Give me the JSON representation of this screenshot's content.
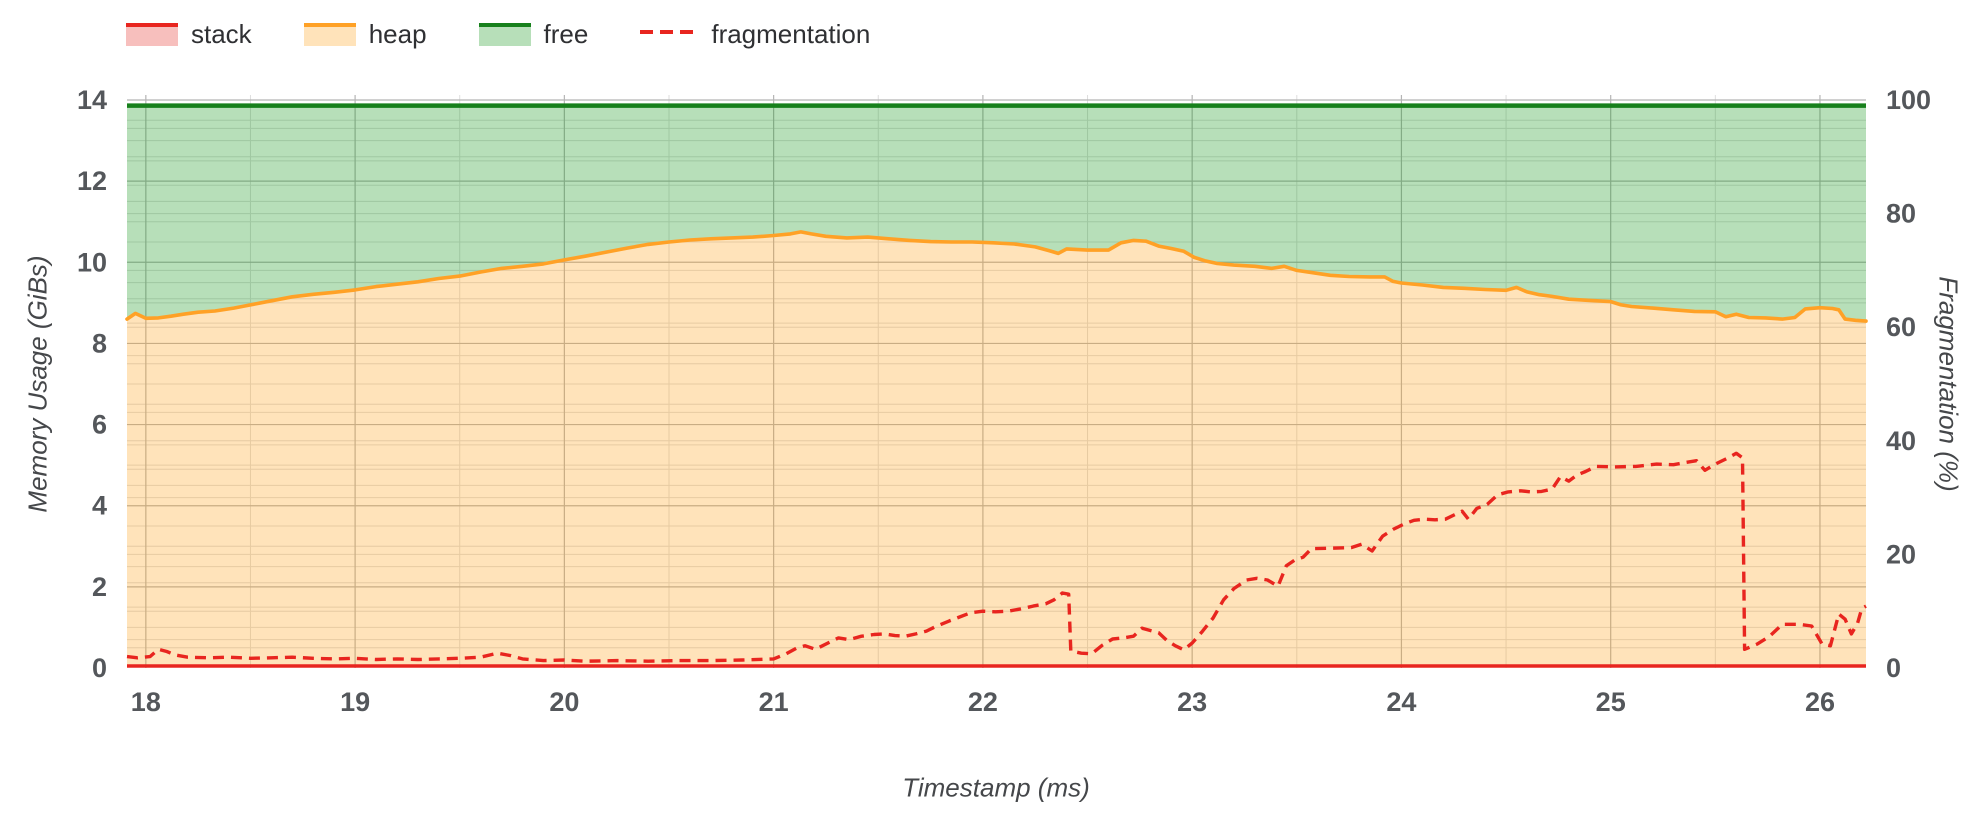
{
  "legend": {
    "items": [
      {
        "label": "stack",
        "type": "area"
      },
      {
        "label": "heap",
        "type": "area"
      },
      {
        "label": "free",
        "type": "area"
      },
      {
        "label": "fragmentation",
        "type": "dashed-line"
      }
    ]
  },
  "chart_data": {
    "type": "area",
    "title": "",
    "xlabel": "Timestamp (ms)",
    "ylabel_left": "Memory Usage (GiBs)",
    "ylabel_right": "Fragmentation (%)",
    "x_range": [
      17.91,
      26.22
    ],
    "y_left_range": [
      0,
      14.25
    ],
    "y_right_range": [
      0,
      101
    ],
    "x_ticks": [
      18,
      19,
      20,
      21,
      22,
      23,
      24,
      25,
      26
    ],
    "y_left_ticks": [
      0,
      2,
      4,
      6,
      8,
      10,
      12,
      14
    ],
    "y_right_ticks": [
      0,
      20,
      40,
      60,
      80,
      100
    ],
    "grid": "on",
    "legend_position": "top-left",
    "total_memory_gib": 13.86,
    "stack_gib": 0.05,
    "series": [
      {
        "name": "stack",
        "axis": "left",
        "style": "line+fill",
        "color": "#e8251f",
        "fill": "rgba(229,43,37,0.30)",
        "points": [
          [
            17.91,
            0.05
          ],
          [
            26.22,
            0.05
          ]
        ]
      },
      {
        "name": "heap",
        "axis": "left",
        "style": "line+fill",
        "color": "#ffa126",
        "fill": "rgba(255,153,0,0.27)",
        "points": [
          [
            17.91,
            8.6
          ],
          [
            17.95,
            8.74
          ],
          [
            18.0,
            8.62
          ],
          [
            18.06,
            8.63
          ],
          [
            18.12,
            8.67
          ],
          [
            18.18,
            8.72
          ],
          [
            18.25,
            8.77
          ],
          [
            18.33,
            8.8
          ],
          [
            18.42,
            8.87
          ],
          [
            18.5,
            8.95
          ],
          [
            18.6,
            9.05
          ],
          [
            18.7,
            9.15
          ],
          [
            18.8,
            9.21
          ],
          [
            18.9,
            9.26
          ],
          [
            19.0,
            9.32
          ],
          [
            19.1,
            9.4
          ],
          [
            19.2,
            9.46
          ],
          [
            19.3,
            9.52
          ],
          [
            19.4,
            9.6
          ],
          [
            19.5,
            9.66
          ],
          [
            19.6,
            9.76
          ],
          [
            19.7,
            9.85
          ],
          [
            19.8,
            9.9
          ],
          [
            19.9,
            9.96
          ],
          [
            20.0,
            10.06
          ],
          [
            20.1,
            10.15
          ],
          [
            20.2,
            10.25
          ],
          [
            20.3,
            10.35
          ],
          [
            20.4,
            10.44
          ],
          [
            20.5,
            10.5
          ],
          [
            20.6,
            10.55
          ],
          [
            20.7,
            10.58
          ],
          [
            20.8,
            10.6
          ],
          [
            20.9,
            10.62
          ],
          [
            21.0,
            10.66
          ],
          [
            21.08,
            10.7
          ],
          [
            21.13,
            10.75
          ],
          [
            21.18,
            10.7
          ],
          [
            21.25,
            10.64
          ],
          [
            21.35,
            10.6
          ],
          [
            21.45,
            10.62
          ],
          [
            21.55,
            10.58
          ],
          [
            21.65,
            10.54
          ],
          [
            21.75,
            10.51
          ],
          [
            21.85,
            10.5
          ],
          [
            21.95,
            10.5
          ],
          [
            22.05,
            10.48
          ],
          [
            22.15,
            10.45
          ],
          [
            22.25,
            10.38
          ],
          [
            22.32,
            10.28
          ],
          [
            22.36,
            10.22
          ],
          [
            22.4,
            10.33
          ],
          [
            22.5,
            10.3
          ],
          [
            22.6,
            10.3
          ],
          [
            22.66,
            10.48
          ],
          [
            22.72,
            10.54
          ],
          [
            22.78,
            10.52
          ],
          [
            22.84,
            10.4
          ],
          [
            22.9,
            10.34
          ],
          [
            22.96,
            10.27
          ],
          [
            23.01,
            10.12
          ],
          [
            23.06,
            10.04
          ],
          [
            23.12,
            9.97
          ],
          [
            23.2,
            9.93
          ],
          [
            23.3,
            9.9
          ],
          [
            23.38,
            9.85
          ],
          [
            23.44,
            9.9
          ],
          [
            23.5,
            9.8
          ],
          [
            23.58,
            9.74
          ],
          [
            23.66,
            9.68
          ],
          [
            23.75,
            9.65
          ],
          [
            23.85,
            9.64
          ],
          [
            23.92,
            9.64
          ],
          [
            23.96,
            9.53
          ],
          [
            24.0,
            9.49
          ],
          [
            24.1,
            9.44
          ],
          [
            24.2,
            9.38
          ],
          [
            24.3,
            9.36
          ],
          [
            24.4,
            9.33
          ],
          [
            24.5,
            9.31
          ],
          [
            24.55,
            9.38
          ],
          [
            24.6,
            9.27
          ],
          [
            24.66,
            9.2
          ],
          [
            24.72,
            9.16
          ],
          [
            24.8,
            9.09
          ],
          [
            24.9,
            9.06
          ],
          [
            25.0,
            9.03
          ],
          [
            25.05,
            8.95
          ],
          [
            25.1,
            8.91
          ],
          [
            25.2,
            8.87
          ],
          [
            25.3,
            8.83
          ],
          [
            25.4,
            8.79
          ],
          [
            25.5,
            8.78
          ],
          [
            25.55,
            8.66
          ],
          [
            25.6,
            8.72
          ],
          [
            25.66,
            8.64
          ],
          [
            25.74,
            8.63
          ],
          [
            25.82,
            8.6
          ],
          [
            25.88,
            8.64
          ],
          [
            25.93,
            8.85
          ],
          [
            26.0,
            8.88
          ],
          [
            26.06,
            8.86
          ],
          [
            26.09,
            8.83
          ],
          [
            26.12,
            8.6
          ],
          [
            26.17,
            8.57
          ],
          [
            26.22,
            8.55
          ]
        ]
      },
      {
        "name": "free",
        "axis": "left",
        "style": "line+fill",
        "color": "#17801c",
        "fill": "rgba(16,150,24,0.30)",
        "points": [
          [
            17.91,
            13.86
          ],
          [
            26.22,
            13.86
          ]
        ]
      },
      {
        "name": "fragmentation",
        "axis": "right",
        "style": "dashed-line",
        "color": "#e8251f",
        "points": [
          [
            17.91,
            2.0
          ],
          [
            17.96,
            1.8
          ],
          [
            18.02,
            2.0
          ],
          [
            18.06,
            3.3
          ],
          [
            18.1,
            2.9
          ],
          [
            18.14,
            2.3
          ],
          [
            18.2,
            1.9
          ],
          [
            18.3,
            1.8
          ],
          [
            18.4,
            1.9
          ],
          [
            18.5,
            1.7
          ],
          [
            18.6,
            1.8
          ],
          [
            18.7,
            1.9
          ],
          [
            18.8,
            1.7
          ],
          [
            18.9,
            1.6
          ],
          [
            19.0,
            1.7
          ],
          [
            19.1,
            1.5
          ],
          [
            19.2,
            1.6
          ],
          [
            19.3,
            1.5
          ],
          [
            19.4,
            1.6
          ],
          [
            19.5,
            1.7
          ],
          [
            19.6,
            1.9
          ],
          [
            19.68,
            2.6
          ],
          [
            19.74,
            2.2
          ],
          [
            19.8,
            1.6
          ],
          [
            19.9,
            1.3
          ],
          [
            20.0,
            1.4
          ],
          [
            20.1,
            1.2
          ],
          [
            20.25,
            1.3
          ],
          [
            20.4,
            1.2
          ],
          [
            20.55,
            1.3
          ],
          [
            20.7,
            1.3
          ],
          [
            20.85,
            1.4
          ],
          [
            21.0,
            1.6
          ],
          [
            21.06,
            2.5
          ],
          [
            21.11,
            3.5
          ],
          [
            21.15,
            3.9
          ],
          [
            21.2,
            3.3
          ],
          [
            21.26,
            4.4
          ],
          [
            21.31,
            5.3
          ],
          [
            21.36,
            5.0
          ],
          [
            21.42,
            5.6
          ],
          [
            21.48,
            5.9
          ],
          [
            21.53,
            6.0
          ],
          [
            21.58,
            5.7
          ],
          [
            21.63,
            5.6
          ],
          [
            21.68,
            6.0
          ],
          [
            21.73,
            6.5
          ],
          [
            21.78,
            7.4
          ],
          [
            21.84,
            8.3
          ],
          [
            21.89,
            9.0
          ],
          [
            21.94,
            9.7
          ],
          [
            22.0,
            10.0
          ],
          [
            22.06,
            9.9
          ],
          [
            22.12,
            10.0
          ],
          [
            22.18,
            10.4
          ],
          [
            22.24,
            10.9
          ],
          [
            22.3,
            11.3
          ],
          [
            22.34,
            12.0
          ],
          [
            22.38,
            13.2
          ],
          [
            22.41,
            13.0
          ],
          [
            22.42,
            3.0
          ],
          [
            22.47,
            2.6
          ],
          [
            22.52,
            2.5
          ],
          [
            22.57,
            4.0
          ],
          [
            22.62,
            5.1
          ],
          [
            22.67,
            5.3
          ],
          [
            22.72,
            5.6
          ],
          [
            22.76,
            7.0
          ],
          [
            22.8,
            6.6
          ],
          [
            22.84,
            6.2
          ],
          [
            22.88,
            4.8
          ],
          [
            22.92,
            3.9
          ],
          [
            22.96,
            3.2
          ],
          [
            23.0,
            4.4
          ],
          [
            23.05,
            6.5
          ],
          [
            23.1,
            8.8
          ],
          [
            23.15,
            12.0
          ],
          [
            23.2,
            14.0
          ],
          [
            23.26,
            15.5
          ],
          [
            23.31,
            15.8
          ],
          [
            23.36,
            15.5
          ],
          [
            23.41,
            14.4
          ],
          [
            23.45,
            18.0
          ],
          [
            23.49,
            19.0
          ],
          [
            23.53,
            19.5
          ],
          [
            23.57,
            21.0
          ],
          [
            23.66,
            21.1
          ],
          [
            23.76,
            21.2
          ],
          [
            23.81,
            21.8
          ],
          [
            23.86,
            20.6
          ],
          [
            23.91,
            23.2
          ],
          [
            23.96,
            24.4
          ],
          [
            24.01,
            25.3
          ],
          [
            24.06,
            26.0
          ],
          [
            24.11,
            26.2
          ],
          [
            24.16,
            26.1
          ],
          [
            24.21,
            26.2
          ],
          [
            24.26,
            27.1
          ],
          [
            24.29,
            27.6
          ],
          [
            24.32,
            26.2
          ],
          [
            24.36,
            28.1
          ],
          [
            24.41,
            28.8
          ],
          [
            24.46,
            30.5
          ],
          [
            24.51,
            31.0
          ],
          [
            24.57,
            31.2
          ],
          [
            24.62,
            31.0
          ],
          [
            24.67,
            31.1
          ],
          [
            24.72,
            31.5
          ],
          [
            24.76,
            33.7
          ],
          [
            24.8,
            32.9
          ],
          [
            24.84,
            34.0
          ],
          [
            24.88,
            34.6
          ],
          [
            24.93,
            35.5
          ],
          [
            25.02,
            35.4
          ],
          [
            25.12,
            35.5
          ],
          [
            25.22,
            35.9
          ],
          [
            25.3,
            35.8
          ],
          [
            25.36,
            36.2
          ],
          [
            25.41,
            36.5
          ],
          [
            25.45,
            34.8
          ],
          [
            25.5,
            35.9
          ],
          [
            25.55,
            36.8
          ],
          [
            25.6,
            37.8
          ],
          [
            25.63,
            37.0
          ],
          [
            25.64,
            3.3
          ],
          [
            25.7,
            4.2
          ],
          [
            25.76,
            5.6
          ],
          [
            25.82,
            7.7
          ],
          [
            25.9,
            7.7
          ],
          [
            25.96,
            7.4
          ],
          [
            26.01,
            4.2
          ],
          [
            26.05,
            3.9
          ],
          [
            26.09,
            9.5
          ],
          [
            26.12,
            8.6
          ],
          [
            26.15,
            6.0
          ],
          [
            26.18,
            7.9
          ],
          [
            26.2,
            10.5
          ],
          [
            26.22,
            10.9
          ]
        ]
      }
    ]
  }
}
